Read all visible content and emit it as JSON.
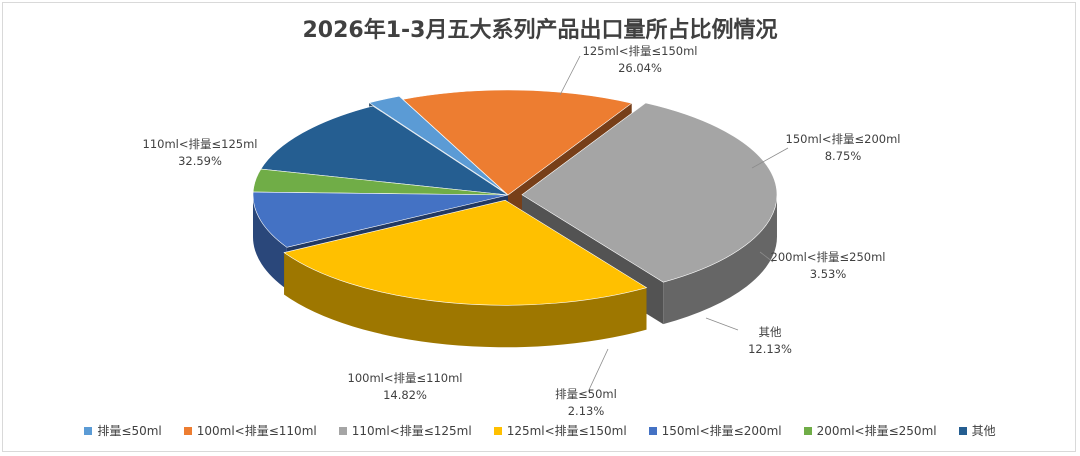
{
  "title": "2026年1-3月五大系列产品出口量所占比例情况",
  "chart_data": {
    "type": "pie",
    "title": "2026年1-3月五大系列产品出口量所占比例情况",
    "legend_position": "bottom",
    "slices": [
      {
        "label": "排量≤50ml",
        "value": 2.13,
        "display": "2.13%",
        "color": "#5b9bd5"
      },
      {
        "label": "100ml<排量≤110ml",
        "value": 14.82,
        "display": "14.82%",
        "color": "#ed7d31"
      },
      {
        "label": "110ml<排量≤125ml",
        "value": 32.59,
        "display": "32.59%",
        "color": "#a5a5a5"
      },
      {
        "label": "125ml<排量≤150ml",
        "value": 26.04,
        "display": "26.04%",
        "color": "#ffc000"
      },
      {
        "label": "150ml<排量≤200ml",
        "value": 8.75,
        "display": "8.75%",
        "color": "#4472c4"
      },
      {
        "label": "200ml<排量≤250ml",
        "value": 3.53,
        "display": "3.53%",
        "color": "#70ad47"
      },
      {
        "label": "其他",
        "value": 12.13,
        "display": "12.13%",
        "color": "#255e91"
      }
    ]
  }
}
